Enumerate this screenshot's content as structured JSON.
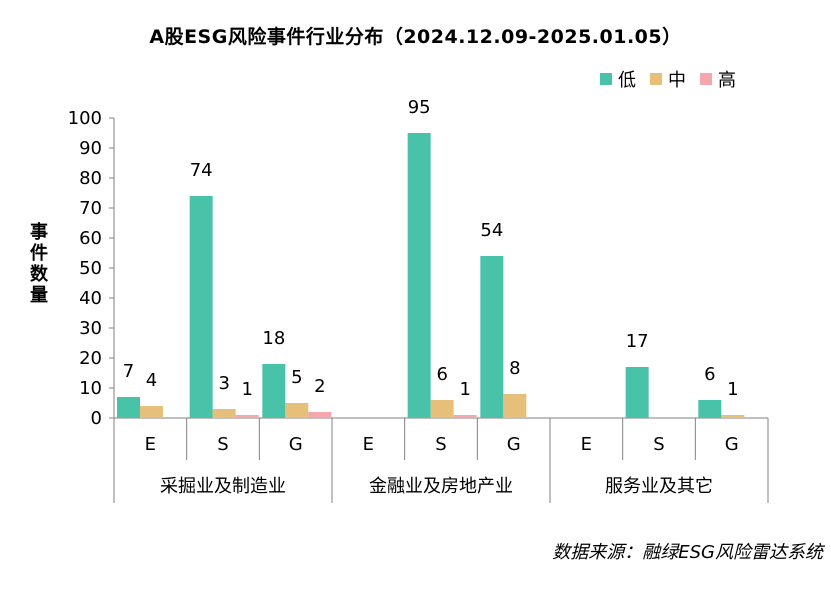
{
  "title": "A股ESG风险事件行业分布（2024.12.09-2025.01.05）",
  "source": "数据来源：融绿ESG风险雷达系统",
  "chart_data": {
    "type": "bar",
    "title": "A股ESG风险事件行业分布（2024.12.09-2025.01.05）",
    "ylabel": "事件数量",
    "ylim": [
      0,
      100
    ],
    "yticks": [
      0,
      10,
      20,
      30,
      40,
      50,
      60,
      70,
      80,
      90,
      100
    ],
    "legend_position": "top-right",
    "grid": false,
    "groups": [
      {
        "name": "采掘业及制造业",
        "categories": [
          "E",
          "S",
          "G"
        ]
      },
      {
        "name": "金融业及房地产业",
        "categories": [
          "E",
          "S",
          "G"
        ]
      },
      {
        "name": "服务业及其它",
        "categories": [
          "E",
          "S",
          "G"
        ]
      }
    ],
    "categories": [
      "E",
      "S",
      "G",
      "E",
      "S",
      "G",
      "E",
      "S",
      "G"
    ],
    "series": [
      {
        "name": "低",
        "color": "#48c2a9",
        "values": [
          7,
          74,
          18,
          0,
          95,
          54,
          0,
          17,
          6
        ],
        "labels": [
          "7",
          "74",
          "18",
          "",
          "95",
          "54",
          "",
          "17",
          "6"
        ]
      },
      {
        "name": "中",
        "color": "#e6c07a",
        "values": [
          4,
          3,
          5,
          0,
          6,
          8,
          0,
          0,
          1
        ],
        "labels": [
          "4",
          "3",
          "5",
          "",
          "6",
          "8",
          "",
          "",
          "1"
        ]
      },
      {
        "name": "高",
        "color": "#f4a7ac",
        "values": [
          0,
          1,
          2,
          0,
          1,
          0,
          0,
          0,
          0
        ],
        "labels": [
          "",
          "1",
          "2",
          "",
          "1",
          "",
          "",
          "",
          ""
        ]
      }
    ]
  }
}
